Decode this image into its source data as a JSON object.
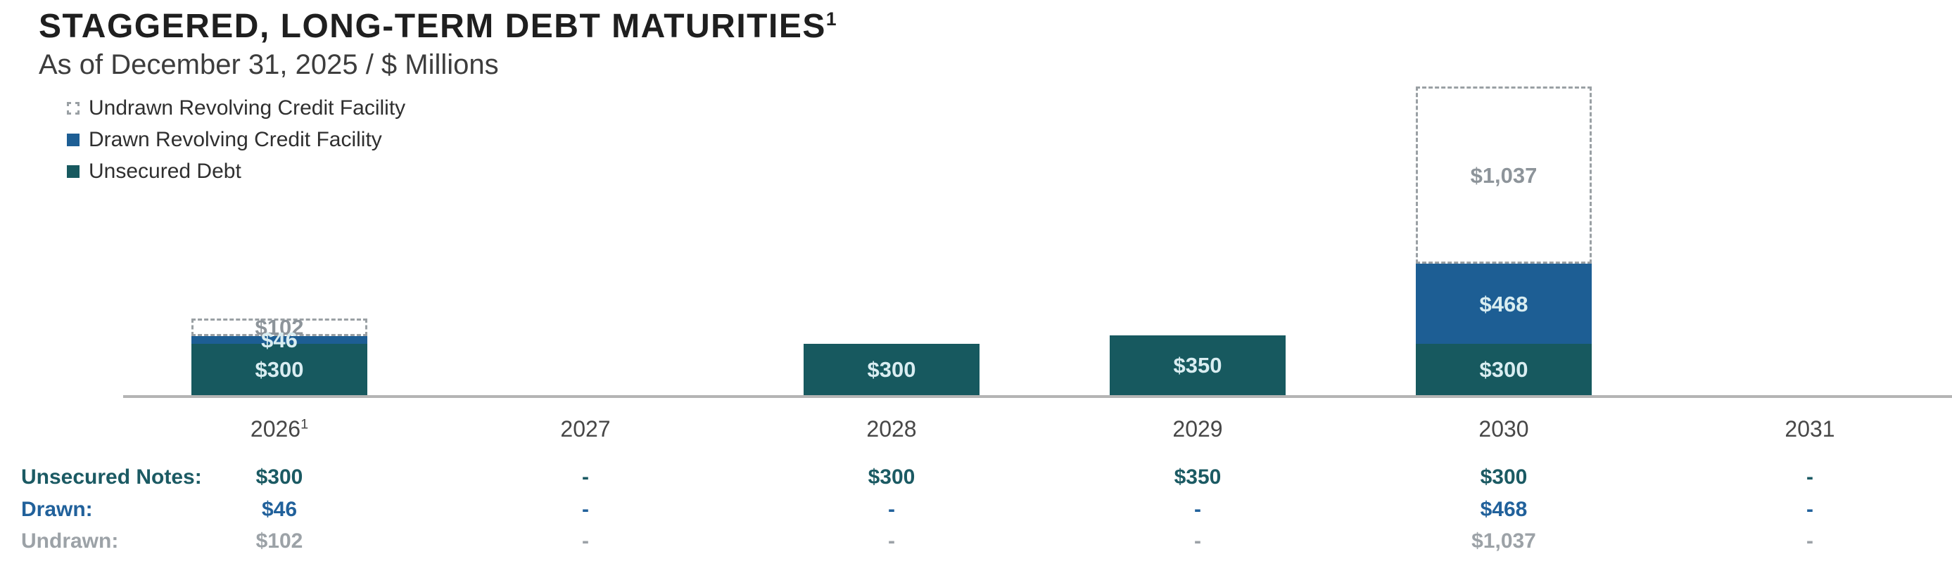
{
  "header": {
    "title": "STAGGERED, LONG-TERM DEBT MATURITIES",
    "title_footnote": "1",
    "subtitle": "As of December 31, 2025 / $ Millions"
  },
  "legend": {
    "items": [
      {
        "label": "Undrawn Revolving Credit Facility",
        "swatch": "dashed-outline",
        "color": "#ffffff",
        "border_color": "#9aa0a4"
      },
      {
        "label": "Drawn Revolving Credit Facility",
        "swatch": "solid",
        "color": "#1d5e94"
      },
      {
        "label": "Unsecured Debt",
        "swatch": "solid",
        "color": "#17595f"
      }
    ]
  },
  "chart_data": {
    "type": "bar",
    "stacked": true,
    "title": "STAGGERED, LONG-TERM DEBT MATURITIES",
    "subtitle": "As of December 31, 2025 / $ Millions",
    "unit": "$ Millions",
    "xlabel": "",
    "ylabel": "",
    "grid": false,
    "legend_position": "top-left",
    "ylim": [
      0,
      1805
    ],
    "categories": [
      "2026",
      "2027",
      "2028",
      "2029",
      "2030",
      "2031"
    ],
    "category_footnotes": [
      "1",
      "",
      "",
      "",
      "",
      ""
    ],
    "series": [
      {
        "name": "Unsecured Debt",
        "color": "#17595f",
        "values": [
          300,
          0,
          300,
          350,
          300,
          0
        ],
        "labels": [
          "$300",
          "",
          "$300",
          "$350",
          "$300",
          ""
        ]
      },
      {
        "name": "Drawn Revolving Credit Facility",
        "color": "#1d5e94",
        "values": [
          46,
          0,
          0,
          0,
          468,
          0
        ],
        "labels": [
          "$46",
          "",
          "",
          "",
          "$468",
          ""
        ]
      },
      {
        "name": "Undrawn Revolving Credit Facility",
        "color": "#ffffff",
        "border_color": "#9aa0a4",
        "values": [
          102,
          0,
          0,
          0,
          1037,
          0
        ],
        "labels": [
          "$102",
          "",
          "",
          "",
          "$1,037",
          ""
        ]
      }
    ]
  },
  "table": {
    "rows": [
      {
        "label": "Unsecured Notes:",
        "color": "#1b5a63",
        "values": [
          "$300",
          "-",
          "$300",
          "$350",
          "$300",
          "-"
        ]
      },
      {
        "label": "Drawn:",
        "color": "#21619b",
        "values": [
          "$46",
          "-",
          "-",
          "-",
          "$468",
          "-"
        ]
      },
      {
        "label": "Undrawn:",
        "color": "#9ca2a7",
        "values": [
          "$102",
          "-",
          "-",
          "-",
          "$1,037",
          "-"
        ]
      }
    ]
  }
}
